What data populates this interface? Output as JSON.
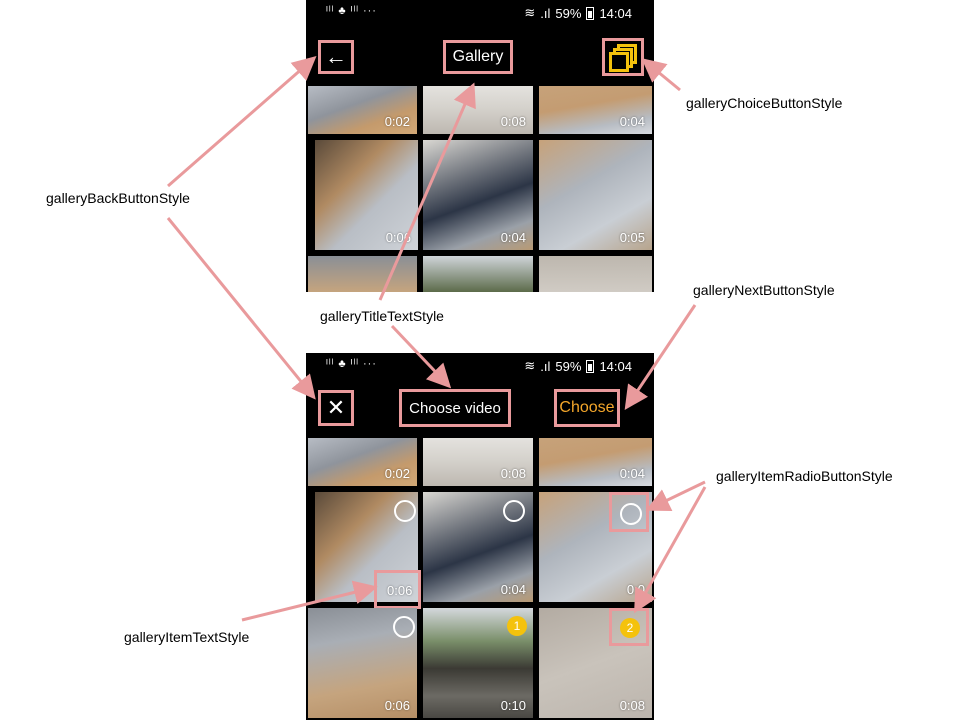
{
  "status_bar": {
    "left_icons": "ᴵˡˡ ♣ ᴵˡˡ ···",
    "battery": "59%",
    "time": "14:04"
  },
  "top_screen": {
    "back_icon": "←",
    "title": "Gallery",
    "choice_icon": "stacked-squares",
    "tiles": [
      {
        "duration": "0:02"
      },
      {
        "duration": "0:08"
      },
      {
        "duration": "0:04"
      },
      {
        "duration": "0:06"
      },
      {
        "duration": "0:04"
      },
      {
        "duration": "0:05"
      }
    ]
  },
  "bottom_screen": {
    "close_icon": "✕",
    "title": "Choose video",
    "next_label": "Choose",
    "tiles": [
      {
        "duration": "0:02"
      },
      {
        "duration": "0:08"
      },
      {
        "duration": "0:04"
      },
      {
        "duration": "0:06",
        "selection": "radio"
      },
      {
        "duration": "0:04",
        "selection": "radio"
      },
      {
        "duration": "0:0",
        "selection": "radio"
      },
      {
        "duration": "0:06",
        "selection": "radio"
      },
      {
        "duration": "0:10",
        "selection": "1"
      },
      {
        "duration": "0:08",
        "selection": "2"
      }
    ]
  },
  "annotations": {
    "back_button": "galleryBackButtonStyle",
    "title_text": "galleryTitleTextStyle",
    "choice_button": "galleryChoiceButtonStyle",
    "next_button": "galleryNextButtonStyle",
    "radio_button": "galleryItemRadioButtonStyle",
    "item_text": "galleryItemTextStyle"
  },
  "colors": {
    "annotation": "#e99a9c",
    "accent_yellow": "#f4c20d",
    "next_orange": "#f4a62a"
  }
}
